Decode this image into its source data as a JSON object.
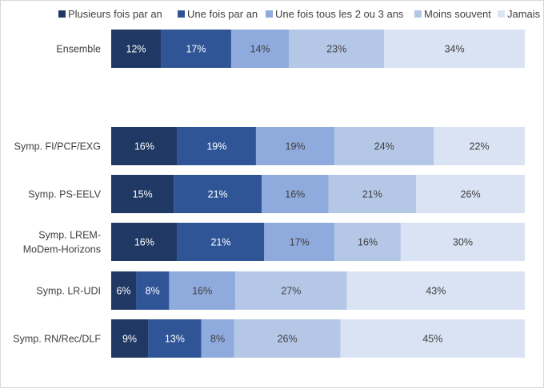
{
  "chart_data": {
    "type": "bar",
    "orientation": "horizontal",
    "stacked": "percent",
    "legend_position": "top",
    "grid": false,
    "xlim": [
      0,
      100
    ],
    "categories": [
      "Ensemble",
      "Symp. FI/PCF/EXG",
      "Symp. PS-EELV",
      "Symp. LREM-MoDem-Horizons",
      "Symp. LR-UDI",
      "Symp. RN/Rec/DLF"
    ],
    "category_lines": [
      [
        "Ensemble"
      ],
      [
        "Symp. FI/PCF/EXG"
      ],
      [
        "Symp. PS-EELV"
      ],
      [
        "Symp. LREM-",
        "MoDem-Horizons"
      ],
      [
        "Symp. LR-UDI"
      ],
      [
        "Symp. RN/Rec/DLF"
      ]
    ],
    "series": [
      {
        "name": "Plusieurs fois par an",
        "color": "#203864",
        "text_color": "#ffffff",
        "values": [
          12,
          16,
          15,
          16,
          6,
          9
        ]
      },
      {
        "name": "Une fois par an",
        "color": "#2f5597",
        "text_color": "#ffffff",
        "values": [
          17,
          19,
          21,
          21,
          8,
          13
        ]
      },
      {
        "name": "Une fois tous les 2 ou 3 ans",
        "color": "#8faadc",
        "text_color": "#404040",
        "values": [
          14,
          19,
          16,
          17,
          16,
          8
        ]
      },
      {
        "name": "Moins souvent",
        "color": "#b4c7e7",
        "text_color": "#404040",
        "values": [
          23,
          24,
          21,
          16,
          27,
          26
        ]
      },
      {
        "name": "Jamais",
        "color": "#dae3f3",
        "text_color": "#404040",
        "values": [
          34,
          22,
          26,
          30,
          43,
          45
        ]
      }
    ],
    "value_suffix": "%"
  }
}
